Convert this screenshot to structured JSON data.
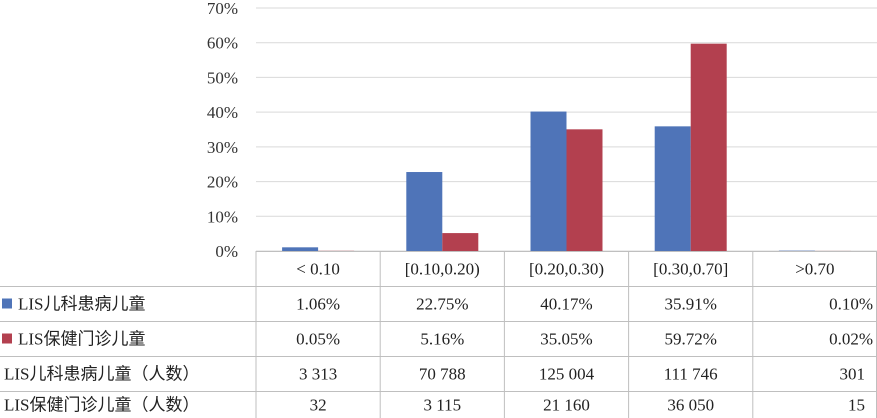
{
  "chart_data": {
    "type": "bar",
    "categories": [
      "< 0.10",
      "[0.10,0.20)",
      "[0.20,0.30)",
      "[0.30,0.70]",
      ">0.70"
    ],
    "series": [
      {
        "name": "LIS儿科患病儿童",
        "color": "#4f74b8",
        "values": [
          1.06,
          22.75,
          40.17,
          35.91,
          0.1
        ],
        "value_labels": [
          "1.06%",
          "22.75%",
          "40.17%",
          "35.91%",
          "0.10%"
        ]
      },
      {
        "name": "LIS保健门诊儿童",
        "color": "#b3404f",
        "values": [
          0.05,
          5.16,
          35.05,
          59.72,
          0.02
        ],
        "value_labels": [
          "0.05%",
          "5.16%",
          "35.05%",
          "59.72%",
          "0.02%"
        ]
      }
    ],
    "y_ticks": [
      "0%",
      "10%",
      "20%",
      "30%",
      "40%",
      "50%",
      "60%",
      "70%"
    ],
    "ylim": [
      0,
      70
    ],
    "grid": true,
    "legend": "table",
    "table_rows": [
      {
        "label": "LIS儿科患病儿童（人数）",
        "values": [
          "3 313",
          "70 788",
          "125 004",
          "111 746",
          "301"
        ]
      },
      {
        "label": "LIS保健门诊儿童（人数）",
        "values": [
          "32",
          "3 115",
          "21 160",
          "36 050",
          "15"
        ]
      }
    ]
  }
}
